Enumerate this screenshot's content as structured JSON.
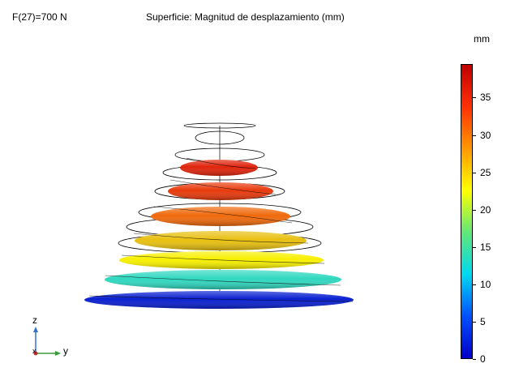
{
  "header": {
    "parameter_label": "F(27)=700 N",
    "title": "Superficie: Magnitud de desplazamiento (mm)"
  },
  "colorbar": {
    "unit": "mm",
    "min": 0,
    "max": 39.5,
    "ticks": [
      "35",
      "30",
      "25",
      "20",
      "15",
      "10",
      "5",
      "0"
    ],
    "tick_values": [
      35,
      30,
      25,
      20,
      15,
      10,
      5,
      0
    ],
    "colormap": [
      "#0000c8",
      "#0050ff",
      "#00d8f0",
      "#60e878",
      "#ffff00",
      "#ff9800",
      "#ff3000",
      "#c00000"
    ]
  },
  "axes": {
    "z_label": "z",
    "y_label": "y",
    "x_label": "x",
    "z_color": "#3a6fd0",
    "y_color": "#3a9a3a",
    "x_color": "#c03030"
  },
  "scene": {
    "coils": [
      {
        "value": 39.0,
        "color": "#d81a0c"
      },
      {
        "value": 38.0,
        "color": "#e0240c"
      },
      {
        "value": 36.5,
        "color": "#e83a0c"
      },
      {
        "value": 33.0,
        "color": "#f06a0c"
      },
      {
        "value": 27.5,
        "color": "#e8c010"
      },
      {
        "value": 21.0,
        "color": "#f8f000"
      },
      {
        "value": 12.5,
        "color": "#30d8c0"
      },
      {
        "value": 2.0,
        "color": "#0a20d0"
      }
    ]
  }
}
